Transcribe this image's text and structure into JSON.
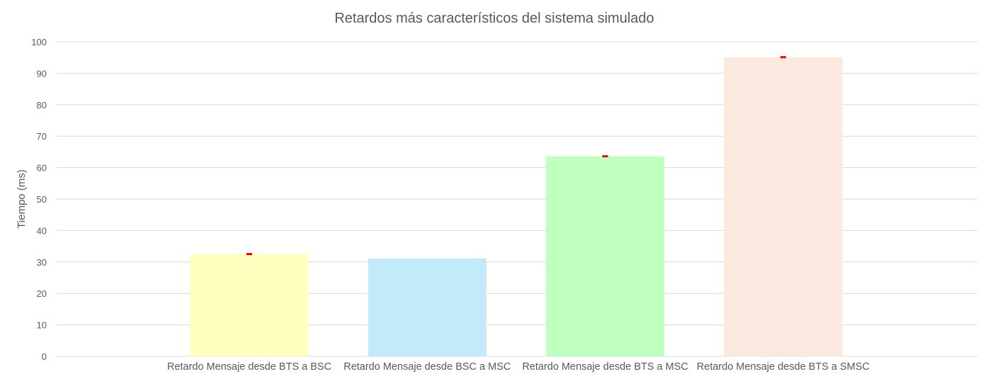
{
  "chart_data": {
    "type": "bar",
    "title": "Retardos más característicos del sistema simulado",
    "xlabel": "",
    "ylabel": "Tiempo (ms)",
    "ylim": [
      0,
      100
    ],
    "yticks": [
      0,
      10,
      20,
      30,
      40,
      50,
      60,
      70,
      80,
      90,
      100
    ],
    "grid": true,
    "legend": "none",
    "categories": [
      "Retardo Mensaje desde BTS a BSC",
      "Retardo Mensaje desde BSC a MSC",
      "Retardo Mensaje desde BTS a MSC",
      "Retardo Mensaje desde BTS a SMSC"
    ],
    "values": [
      32.5,
      31.1,
      63.6,
      95.1
    ],
    "error_bars": [
      true,
      false,
      true,
      true
    ],
    "colors": [
      "#ffffbf",
      "#c2eafa",
      "#bfffbf",
      "#fbe9df"
    ],
    "error_bar_color": "#e00000"
  }
}
